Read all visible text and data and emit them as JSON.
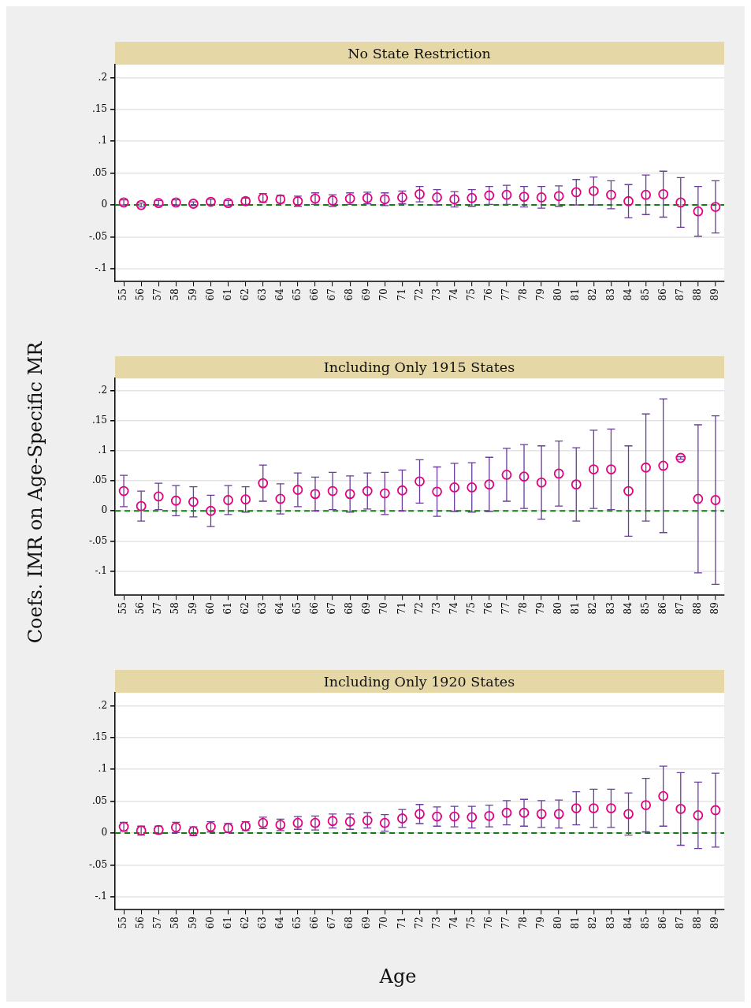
{
  "chart_data": [
    {
      "type": "scatter",
      "title": "No State Restriction",
      "categories": [
        "55",
        "56",
        "57",
        "58",
        "59",
        "60",
        "61",
        "62",
        "63",
        "64",
        "65",
        "66",
        "67",
        "68",
        "69",
        "70",
        "71",
        "72",
        "73",
        "74",
        "75",
        "76",
        "77",
        "78",
        "79",
        "80",
        "81",
        "82",
        "83",
        "84",
        "85",
        "86",
        "87",
        "88",
        "89"
      ],
      "values": [
        0.004,
        0.0,
        0.003,
        0.004,
        0.002,
        0.005,
        0.003,
        0.006,
        0.011,
        0.009,
        0.006,
        0.01,
        0.007,
        0.01,
        0.011,
        0.009,
        0.012,
        0.017,
        0.012,
        0.009,
        0.011,
        0.015,
        0.016,
        0.013,
        0.012,
        0.014,
        0.02,
        0.022,
        0.016,
        0.006,
        0.016,
        0.017,
        0.004,
        -0.01,
        -0.003
      ],
      "errors": [
        0.004,
        0.003,
        0.004,
        0.004,
        0.003,
        0.004,
        0.004,
        0.005,
        0.007,
        0.006,
        0.008,
        0.009,
        0.009,
        0.009,
        0.009,
        0.01,
        0.01,
        0.012,
        0.012,
        0.012,
        0.013,
        0.014,
        0.015,
        0.016,
        0.017,
        0.016,
        0.02,
        0.022,
        0.022,
        0.026,
        0.031,
        0.036,
        0.039,
        0.039,
        0.041
      ],
      "color": "#e5007d",
      "marker": "circle",
      "ylim": [
        -0.12,
        0.22
      ],
      "yticks": [
        {
          "value": -0.1,
          "label": "-.1"
        },
        {
          "value": -0.05,
          "label": "-.05"
        },
        {
          "value": 0,
          "label": "0"
        },
        {
          "value": 0.05,
          "label": ".05"
        },
        {
          "value": 0.1,
          "label": ".1"
        },
        {
          "value": 0.15,
          "label": ".15"
        },
        {
          "value": 0.2,
          "label": ".2"
        }
      ],
      "grid": "y",
      "ref_lines": [
        {
          "axis": "y",
          "value": 0,
          "color": "#167a16",
          "line_style": "dashed"
        }
      ]
    },
    {
      "type": "scatter",
      "title": "Including Only 1915 States",
      "ylabel": "Coefs. IMR on Age-Specific MR",
      "categories": [
        "55",
        "56",
        "57",
        "58",
        "59",
        "60",
        "61",
        "62",
        "63",
        "64",
        "65",
        "66",
        "67",
        "68",
        "69",
        "70",
        "71",
        "72",
        "73",
        "74",
        "75",
        "76",
        "77",
        "78",
        "79",
        "80",
        "81",
        "82",
        "83",
        "84",
        "85",
        "86",
        "87",
        "88",
        "89"
      ],
      "values": [
        0.033,
        0.008,
        0.024,
        0.017,
        0.015,
        0.0,
        0.018,
        0.019,
        0.046,
        0.02,
        0.035,
        0.028,
        0.033,
        0.028,
        0.033,
        0.029,
        0.034,
        0.049,
        0.032,
        0.039,
        0.039,
        0.044,
        0.06,
        0.057,
        0.047,
        0.062,
        0.044,
        0.069,
        0.069,
        0.033,
        0.072,
        0.075,
        0.088,
        0.02,
        0.018
      ],
      "errors": [
        0.026,
        0.025,
        0.022,
        0.025,
        0.025,
        0.026,
        0.024,
        0.021,
        0.03,
        0.025,
        0.028,
        0.028,
        0.031,
        0.03,
        0.03,
        0.035,
        0.034,
        0.036,
        0.041,
        0.04,
        0.041,
        0.045,
        0.044,
        0.053,
        0.061,
        0.054,
        0.061,
        0.065,
        0.067,
        0.075,
        0.089,
        0.111,
        0.002,
        0.123,
        0.14
      ],
      "color": "#e5007d",
      "marker": "circle",
      "ylim": [
        -0.14,
        0.22
      ],
      "yticks": [
        {
          "value": -0.1,
          "label": "-.1"
        },
        {
          "value": -0.05,
          "label": "-.05"
        },
        {
          "value": 0,
          "label": "0"
        },
        {
          "value": 0.05,
          "label": ".05"
        },
        {
          "value": 0.1,
          "label": ".1"
        },
        {
          "value": 0.15,
          "label": ".15"
        },
        {
          "value": 0.2,
          "label": ".2"
        }
      ],
      "grid": "y",
      "ref_lines": [
        {
          "axis": "y",
          "value": 0,
          "color": "#167a16",
          "line_style": "dashed"
        }
      ]
    },
    {
      "type": "scatter",
      "title": "Including Only 1920 States",
      "xlabel": "Age",
      "categories": [
        "55",
        "56",
        "57",
        "58",
        "59",
        "60",
        "61",
        "62",
        "63",
        "64",
        "65",
        "66",
        "67",
        "68",
        "69",
        "70",
        "71",
        "72",
        "73",
        "74",
        "75",
        "76",
        "77",
        "78",
        "79",
        "80",
        "81",
        "82",
        "83",
        "84",
        "85",
        "86",
        "87",
        "88",
        "89"
      ],
      "values": [
        0.01,
        0.004,
        0.005,
        0.009,
        0.003,
        0.01,
        0.008,
        0.011,
        0.016,
        0.013,
        0.016,
        0.016,
        0.019,
        0.018,
        0.02,
        0.016,
        0.023,
        0.03,
        0.026,
        0.026,
        0.025,
        0.027,
        0.032,
        0.032,
        0.03,
        0.03,
        0.039,
        0.039,
        0.039,
        0.03,
        0.044,
        0.058,
        0.038,
        0.028,
        0.036
      ],
      "errors": [
        0.007,
        0.007,
        0.006,
        0.008,
        0.007,
        0.008,
        0.007,
        0.007,
        0.009,
        0.009,
        0.01,
        0.011,
        0.011,
        0.012,
        0.012,
        0.013,
        0.014,
        0.015,
        0.015,
        0.016,
        0.017,
        0.017,
        0.019,
        0.021,
        0.021,
        0.022,
        0.026,
        0.03,
        0.03,
        0.033,
        0.042,
        0.047,
        0.057,
        0.052,
        0.058
      ],
      "color": "#e5007d",
      "marker": "circle",
      "ylim": [
        -0.12,
        0.22
      ],
      "yticks": [
        {
          "value": -0.1,
          "label": "-.1"
        },
        {
          "value": -0.05,
          "label": "-.05"
        },
        {
          "value": 0,
          "label": "0"
        },
        {
          "value": 0.05,
          "label": ".05"
        },
        {
          "value": 0.1,
          "label": ".1"
        },
        {
          "value": 0.15,
          "label": ".15"
        },
        {
          "value": 0.2,
          "label": ".2"
        }
      ],
      "grid": "y",
      "ref_lines": [
        {
          "axis": "y",
          "value": 0,
          "color": "#167a16",
          "line_style": "dashed"
        }
      ]
    }
  ]
}
